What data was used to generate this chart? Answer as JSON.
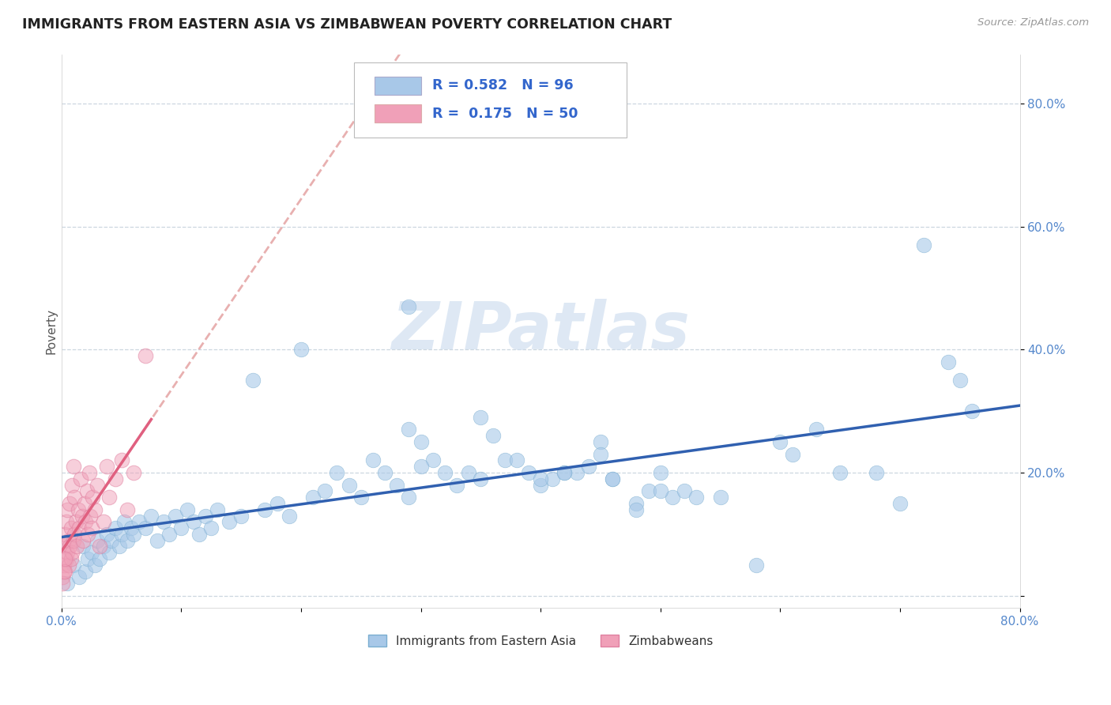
{
  "title": "IMMIGRANTS FROM EASTERN ASIA VS ZIMBABWEAN POVERTY CORRELATION CHART",
  "source": "Source: ZipAtlas.com",
  "ylabel": "Poverty",
  "xlim": [
    0.0,
    0.8
  ],
  "ylim": [
    -0.02,
    0.88
  ],
  "x_ticks": [
    0.0,
    0.1,
    0.2,
    0.3,
    0.4,
    0.5,
    0.6,
    0.7,
    0.8
  ],
  "x_tick_labels": [
    "0.0%",
    "",
    "",
    "",
    "",
    "",
    "",
    "",
    "80.0%"
  ],
  "y_ticks": [
    0.0,
    0.2,
    0.4,
    0.6,
    0.8
  ],
  "y_tick_labels": [
    "",
    "20.0%",
    "40.0%",
    "60.0%",
    "80.0%"
  ],
  "R_blue": 0.582,
  "N_blue": 96,
  "R_pink": 0.175,
  "N_pink": 50,
  "blue_color": "#a8c8e8",
  "blue_edge_color": "#7aaed0",
  "blue_line_color": "#3060b0",
  "pink_color": "#f0a0b8",
  "pink_edge_color": "#e080a0",
  "pink_line_color": "#e06080",
  "pink_dash_color": "#e8b0b0",
  "watermark": "ZIPatlas",
  "watermark_color": "#d0dff0",
  "legend_label_blue": "Immigrants from Eastern Asia",
  "legend_label_pink": "Zimbabweans",
  "blue_scatter_x": [
    0.005,
    0.01,
    0.015,
    0.018,
    0.02,
    0.022,
    0.025,
    0.028,
    0.03,
    0.032,
    0.035,
    0.038,
    0.04,
    0.042,
    0.045,
    0.048,
    0.05,
    0.052,
    0.055,
    0.058,
    0.06,
    0.065,
    0.07,
    0.075,
    0.08,
    0.085,
    0.09,
    0.095,
    0.1,
    0.105,
    0.11,
    0.115,
    0.12,
    0.125,
    0.13,
    0.14,
    0.15,
    0.16,
    0.17,
    0.18,
    0.19,
    0.2,
    0.21,
    0.22,
    0.23,
    0.24,
    0.25,
    0.26,
    0.27,
    0.28,
    0.29,
    0.3,
    0.31,
    0.32,
    0.33,
    0.34,
    0.35,
    0.36,
    0.37,
    0.38,
    0.39,
    0.4,
    0.41,
    0.43,
    0.45,
    0.46,
    0.48,
    0.49,
    0.5,
    0.51,
    0.52,
    0.53,
    0.55,
    0.58,
    0.6,
    0.61,
    0.63,
    0.65,
    0.68,
    0.7,
    0.72,
    0.74,
    0.75,
    0.76,
    0.4,
    0.42,
    0.44,
    0.46,
    0.48,
    0.5,
    0.29,
    0.35,
    0.29,
    0.3,
    0.42,
    0.45
  ],
  "blue_scatter_y": [
    0.02,
    0.05,
    0.03,
    0.08,
    0.04,
    0.06,
    0.07,
    0.05,
    0.09,
    0.06,
    0.08,
    0.1,
    0.07,
    0.09,
    0.11,
    0.08,
    0.1,
    0.12,
    0.09,
    0.11,
    0.1,
    0.12,
    0.11,
    0.13,
    0.09,
    0.12,
    0.1,
    0.13,
    0.11,
    0.14,
    0.12,
    0.1,
    0.13,
    0.11,
    0.14,
    0.12,
    0.13,
    0.35,
    0.14,
    0.15,
    0.13,
    0.4,
    0.16,
    0.17,
    0.2,
    0.18,
    0.16,
    0.22,
    0.2,
    0.18,
    0.16,
    0.25,
    0.22,
    0.2,
    0.18,
    0.2,
    0.29,
    0.26,
    0.22,
    0.22,
    0.2,
    0.18,
    0.19,
    0.2,
    0.25,
    0.19,
    0.15,
    0.17,
    0.2,
    0.16,
    0.17,
    0.16,
    0.16,
    0.05,
    0.25,
    0.23,
    0.27,
    0.2,
    0.2,
    0.15,
    0.57,
    0.38,
    0.35,
    0.3,
    0.19,
    0.2,
    0.21,
    0.19,
    0.14,
    0.17,
    0.27,
    0.19,
    0.47,
    0.21,
    0.2,
    0.23
  ],
  "pink_scatter_x": [
    0.001,
    0.002,
    0.002,
    0.003,
    0.003,
    0.004,
    0.004,
    0.005,
    0.005,
    0.006,
    0.006,
    0.007,
    0.007,
    0.008,
    0.008,
    0.009,
    0.009,
    0.01,
    0.01,
    0.011,
    0.011,
    0.012,
    0.013,
    0.014,
    0.015,
    0.016,
    0.017,
    0.018,
    0.019,
    0.02,
    0.021,
    0.022,
    0.023,
    0.024,
    0.025,
    0.026,
    0.028,
    0.03,
    0.032,
    0.035,
    0.038,
    0.04,
    0.045,
    0.05,
    0.055,
    0.06,
    0.07,
    0.001,
    0.002,
    0.003
  ],
  "pink_scatter_y": [
    0.03,
    0.05,
    0.08,
    0.04,
    0.1,
    0.06,
    0.12,
    0.07,
    0.14,
    0.05,
    0.09,
    0.08,
    0.15,
    0.06,
    0.11,
    0.07,
    0.18,
    0.09,
    0.21,
    0.1,
    0.16,
    0.12,
    0.08,
    0.14,
    0.11,
    0.19,
    0.13,
    0.09,
    0.15,
    0.12,
    0.17,
    0.1,
    0.2,
    0.13,
    0.11,
    0.16,
    0.14,
    0.18,
    0.08,
    0.12,
    0.21,
    0.16,
    0.19,
    0.22,
    0.14,
    0.2,
    0.39,
    0.02,
    0.04,
    0.06
  ]
}
